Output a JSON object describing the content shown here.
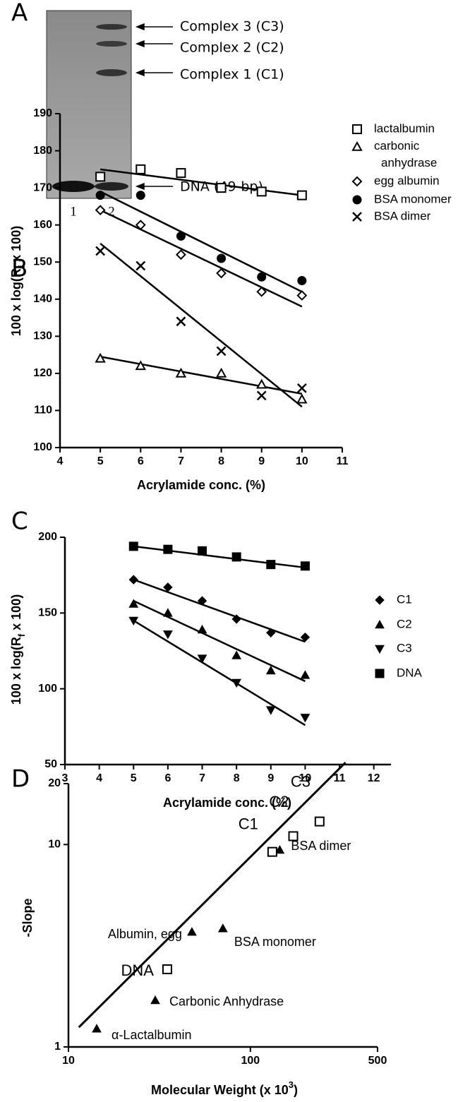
{
  "gel": {
    "panel_label": "A",
    "lanes": [
      "1",
      "2"
    ],
    "bands": [
      "Complex 3 (C3)",
      "Complex 2 (C2)",
      "Complex 1 (C1)",
      "DNA (49-bp)"
    ]
  },
  "chart_data": [
    {
      "type": "scatter",
      "panel_label": "B",
      "x_label": "Acrylamide conc. (%)",
      "y_label": [
        "100 x log(R",
        "f",
        " x 100)"
      ],
      "x": [
        5,
        6,
        7,
        8,
        9,
        10
      ],
      "xlim": [
        4,
        11
      ],
      "ylim": [
        100,
        190
      ],
      "xticks": [
        4,
        5,
        6,
        7,
        8,
        9,
        10,
        11
      ],
      "yticks": [
        100,
        110,
        120,
        130,
        140,
        150,
        160,
        170,
        180,
        190
      ],
      "color": "#000000",
      "fit_x": [
        5,
        10
      ],
      "series": [
        {
          "name": "lactalbumin",
          "marker": "square-open",
          "values": [
            173,
            175,
            174,
            170,
            169,
            168
          ],
          "fit": [
            175,
            168
          ]
        },
        {
          "name": "carbonic anhydrase",
          "marker": "triangle-open",
          "values": [
            124,
            122,
            120,
            120,
            117,
            113
          ],
          "fit": [
            124.5,
            114.5
          ]
        },
        {
          "name": "egg albumin",
          "marker": "diamond-open",
          "values": [
            164,
            160,
            152,
            147,
            142,
            141
          ],
          "fit": [
            164,
            138
          ]
        },
        {
          "name": "BSA monomer",
          "marker": "circle",
          "values": [
            168,
            168,
            157,
            151,
            146,
            145
          ],
          "fit": [
            169,
            142
          ]
        },
        {
          "name": "BSA dimer",
          "marker": "x",
          "values": [
            153,
            149,
            134,
            126,
            114,
            116
          ],
          "fit": [
            155,
            111
          ]
        }
      ]
    },
    {
      "type": "scatter",
      "panel_label": "C",
      "x_label": "Acrylamide conc. (%)",
      "y_label": [
        "100 x log(R",
        "f",
        " x 100)"
      ],
      "x": [
        5,
        6,
        7,
        8,
        9,
        10
      ],
      "xlim": [
        3,
        12.5
      ],
      "ylim": [
        50,
        200
      ],
      "xticks": [
        3,
        4,
        5,
        6,
        7,
        8,
        9,
        10,
        11,
        12
      ],
      "yticks": [
        50,
        100,
        150,
        200
      ],
      "color": "#000000",
      "fit_x": [
        5,
        10
      ],
      "series": [
        {
          "name": "C1",
          "marker": "diamond",
          "values": [
            172,
            167,
            158,
            146,
            137,
            134
          ],
          "fit": [
            172,
            131
          ]
        },
        {
          "name": "C2",
          "marker": "triangle",
          "values": [
            156,
            150,
            139,
            122,
            112,
            109
          ],
          "fit": [
            158,
            105
          ]
        },
        {
          "name": "C3",
          "marker": "triangle-down",
          "values": [
            145,
            136,
            120,
            104,
            86,
            81
          ],
          "fit": [
            145,
            76
          ]
        },
        {
          "name": "DNA",
          "marker": "square",
          "values": [
            194,
            192,
            191,
            187,
            182,
            181
          ],
          "fit": [
            194,
            180
          ]
        }
      ]
    },
    {
      "type": "loglog",
      "panel_label": "D",
      "x_label": [
        "Molecular Weight (x 10",
        "3",
        ")"
      ],
      "y_label": "-Slope",
      "xlim": [
        10,
        500
      ],
      "ylim": [
        1,
        20
      ],
      "xticks": [
        10,
        100,
        500
      ],
      "yticks": [
        1,
        10,
        20
      ],
      "log": true,
      "color": "#000000",
      "fit": {
        "x": [
          11.4,
          333
        ],
        "y": [
          1.25,
          25.4
        ]
      },
      "series": [
        {
          "marker": "triangle",
          "x": [
            14.3,
            30,
            47.7,
            70.6,
            145
          ],
          "values": [
            1.23,
            1.7,
            3.7,
            3.85,
            9.4
          ],
          "labels": [
            "α-Lactalbumin",
            "Carbonic Anhydrase",
            "Albumin, egg",
            "BSA monomer",
            "BSA dimer"
          ]
        },
        {
          "marker": "square-open",
          "x": [
            34.9,
            132,
            172,
            240
          ],
          "values": [
            2.42,
            9.2,
            11.0,
            13.0
          ],
          "labels": [
            "DNA",
            "C1",
            "C2",
            "C3"
          ]
        }
      ]
    }
  ]
}
